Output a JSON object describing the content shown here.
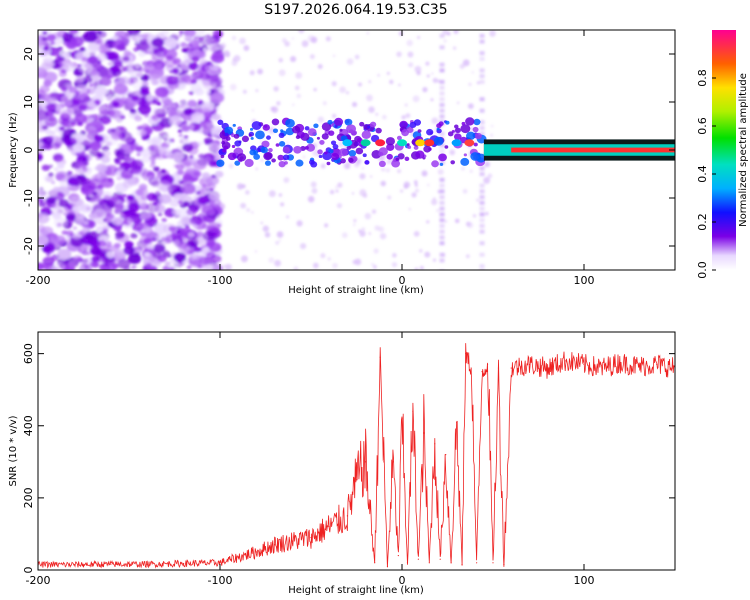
{
  "title": "S197.2026.064.19.53.C35",
  "chart_data": [
    {
      "type": "heatmap",
      "name": "spectrogram",
      "xlabel": "Height of straight line (km)",
      "ylabel": "Frequency (Hz)",
      "xlim": [
        -200,
        150
      ],
      "ylim": [
        -25,
        25
      ],
      "xticks": [
        -200,
        -100,
        0,
        100
      ],
      "yticks": [
        -20,
        -10,
        0,
        10,
        20
      ],
      "colorbar": {
        "label": "Normalized spectral amplitude",
        "range": [
          0.0,
          1.0
        ],
        "ticks": [
          0.0,
          0.2,
          0.4,
          0.6,
          0.8
        ]
      },
      "features": [
        {
          "kind": "broadband noise",
          "x_range": [
            -200,
            -100
          ]
        },
        {
          "kind": "carrier band, fragmented",
          "x_range": [
            -100,
            45
          ],
          "freq_hz": 1.5
        },
        {
          "kind": "carrier band, continuous",
          "x_range": [
            45,
            150
          ],
          "freq_hz": 0
        }
      ],
      "vertical_streaks_x": [
        22,
        44
      ]
    },
    {
      "type": "line",
      "name": "snr",
      "xlabel": "Height of straight line (km)",
      "ylabel": "SNR (10 * v/v)",
      "xlim": [
        -200,
        150
      ],
      "ylim": [
        0,
        660
      ],
      "xticks": [
        -200,
        -100,
        0,
        100
      ],
      "yticks": [
        0,
        200,
        400,
        600
      ],
      "color": "#ee2222",
      "series": [
        {
          "name": "SNR",
          "x": [
            -200,
            -180,
            -160,
            -140,
            -120,
            -100,
            -90,
            -80,
            -70,
            -60,
            -50,
            -40,
            -30,
            -25,
            -20,
            -15,
            -12,
            -10,
            -8,
            -5,
            -2,
            0,
            3,
            6,
            9,
            12,
            15,
            18,
            21,
            24,
            27,
            30,
            33,
            35,
            38,
            41,
            44,
            47,
            50,
            53,
            56,
            60,
            70,
            80,
            90,
            100,
            110,
            120,
            130,
            140,
            150
          ],
          "values": [
            15,
            15,
            16,
            16,
            18,
            20,
            35,
            50,
            70,
            80,
            90,
            120,
            150,
            250,
            300,
            20,
            590,
            300,
            10,
            300,
            40,
            420,
            20,
            440,
            30,
            380,
            20,
            350,
            30,
            320,
            20,
            410,
            15,
            600,
            560,
            20,
            550,
            570,
            20,
            560,
            15,
            560,
            570,
            560,
            580,
            570,
            560,
            575,
            565,
            570,
            560
          ]
        }
      ]
    }
  ]
}
